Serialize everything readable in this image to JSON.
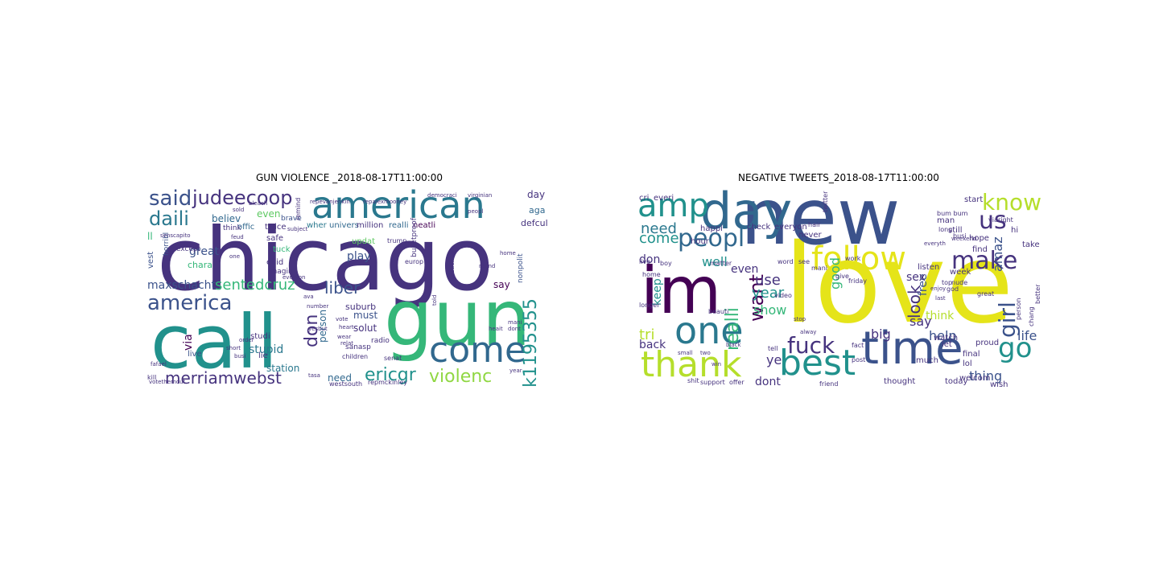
{
  "figure": {
    "panels": [
      {
        "title": "GUN VIOLENCE _2018-08-17T11:00:00",
        "words": [
          {
            "text": "chicago",
            "color": "#46337e"
          },
          {
            "text": "call",
            "color": "#21918c"
          },
          {
            "text": "gun",
            "color": "#35b779"
          },
          {
            "text": "american",
            "color": "#2a788e"
          },
          {
            "text": "come",
            "color": "#31688e"
          },
          {
            "text": "america",
            "color": "#3b528b"
          },
          {
            "text": "said",
            "color": "#3b528b"
          },
          {
            "text": "judeecoop",
            "color": "#46337e"
          },
          {
            "text": "daili",
            "color": "#2a788e"
          },
          {
            "text": "merriamwebst",
            "color": "#46337e"
          },
          {
            "text": "violenc",
            "color": "#90d743"
          },
          {
            "text": "ericgr",
            "color": "#21918c"
          },
          {
            "text": "sentedcruz",
            "color": "#35b779"
          },
          {
            "text": "liber",
            "color": "#3b528b"
          },
          {
            "text": "maxschacht",
            "color": "#3b528b"
          },
          {
            "text": "jk1195355",
            "color": "#21918c"
          },
          {
            "text": "don",
            "color": "#46337e"
          },
          {
            "text": "stupid",
            "color": "#2a788e"
          },
          {
            "text": "play",
            "color": "#3b528b"
          },
          {
            "text": "great",
            "color": "#3b528b"
          },
          {
            "text": "believ",
            "color": "#31688e"
          },
          {
            "text": "even",
            "color": "#5ec962"
          },
          {
            "text": "day",
            "color": "#46337e"
          },
          {
            "text": "say",
            "color": "#440154"
          },
          {
            "text": "must",
            "color": "#3b528b"
          },
          {
            "text": "person",
            "color": "#31688e"
          },
          {
            "text": "need",
            "color": "#31688e"
          },
          {
            "text": "solut",
            "color": "#46337e"
          },
          {
            "text": "suburb",
            "color": "#46337e"
          },
          {
            "text": "station",
            "color": "#2a788e"
          },
          {
            "text": "defcul",
            "color": "#46337e"
          },
          {
            "text": "aga",
            "color": "#31688e"
          },
          {
            "text": "ll",
            "color": "#35b779"
          },
          {
            "text": "via",
            "color": "#440154"
          },
          {
            "text": "live",
            "color": "#3b528b"
          },
          {
            "text": "vest",
            "color": "#3b528b"
          },
          {
            "text": "chara",
            "color": "#35b779"
          },
          {
            "text": "wher",
            "color": "#2a788e"
          },
          {
            "text": "univers",
            "color": "#31688e"
          },
          {
            "text": "million",
            "color": "#46337e"
          },
          {
            "text": "realli",
            "color": "#31688e"
          },
          {
            "text": "neatli",
            "color": "#440154"
          },
          {
            "text": "twice",
            "color": "#46337e"
          },
          {
            "text": "safe",
            "color": "#46337e"
          },
          {
            "text": "tuck",
            "color": "#35b779"
          },
          {
            "text": "evid",
            "color": "#46337e"
          },
          {
            "text": "offic",
            "color": "#31688e"
          },
          {
            "text": "updat",
            "color": "#5ec962"
          },
          {
            "text": "brave",
            "color": "#3b528b"
          },
          {
            "text": "except",
            "color": "#46337e"
          },
          {
            "text": "horribl",
            "color": "#3b528b"
          },
          {
            "text": "think",
            "color": "#46337e"
          },
          {
            "text": "imagin",
            "color": "#46337e"
          },
          {
            "text": "trump",
            "color": "#46337e"
          },
          {
            "text": "europ",
            "color": "#46337e"
          },
          {
            "text": "democraci",
            "color": "#46337e"
          },
          {
            "text": "virginian",
            "color": "#46337e"
          },
          {
            "text": "bulletproof",
            "color": "#46337e"
          },
          {
            "text": "nonpolit",
            "color": "#3b528b"
          },
          {
            "text": "radio",
            "color": "#46337e"
          },
          {
            "text": "sanasp",
            "color": "#46337e"
          },
          {
            "text": "lie",
            "color": "#46337e"
          },
          {
            "text": "studi",
            "color": "#46337e"
          },
          {
            "text": "senat",
            "color": "#46337e"
          },
          {
            "text": "children",
            "color": "#46337e"
          },
          {
            "text": "repmckinley",
            "color": "#46337e"
          },
          {
            "text": "westsouth",
            "color": "#46337e"
          },
          {
            "text": "votethemout",
            "color": "#46337e"
          },
          {
            "text": "kill",
            "color": "#46337e"
          },
          {
            "text": "year",
            "color": "#46337e"
          },
          {
            "text": "dont",
            "color": "#46337e"
          },
          {
            "text": "mani",
            "color": "#46337e"
          },
          {
            "text": "told",
            "color": "#46337e"
          },
          {
            "text": "heart",
            "color": "#46337e"
          },
          {
            "text": "vote",
            "color": "#46337e"
          },
          {
            "text": "number",
            "color": "#46337e"
          },
          {
            "text": "order",
            "color": "#46337e"
          },
          {
            "text": "short",
            "color": "#46337e"
          },
          {
            "text": "busi",
            "color": "#46337e"
          },
          {
            "text": "one",
            "color": "#46337e"
          },
          {
            "text": "home",
            "color": "#46337e"
          },
          {
            "text": "peopl",
            "color": "#46337e"
          },
          {
            "text": "yesbut",
            "color": "#46337e"
          },
          {
            "text": "wear",
            "color": "#46337e"
          },
          {
            "text": "relat",
            "color": "#46337e"
          },
          {
            "text": "repevanjenkin",
            "color": "#46337e"
          },
          {
            "text": "repalexmooney",
            "color": "#46337e"
          },
          {
            "text": "sold",
            "color": "#46337e"
          },
          {
            "text": "feud",
            "color": "#46337e"
          },
          {
            "text": "tasa",
            "color": "#46337e"
          },
          {
            "text": "round",
            "color": "#46337e"
          },
          {
            "text": "heait",
            "color": "#46337e"
          },
          {
            "text": "everyon",
            "color": "#46337e"
          },
          {
            "text": "ava",
            "color": "#46337e"
          },
          {
            "text": "bleach",
            "color": "#46337e"
          },
          {
            "text": "senscapito",
            "color": "#46337e"
          },
          {
            "text": "fafael",
            "color": "#46337e"
          },
          {
            "text": "question",
            "color": "#46337e"
          },
          {
            "text": "subject",
            "color": "#46337e"
          },
          {
            "text": "remind",
            "color": "#46337e"
          }
        ]
      },
      {
        "title": "NEGATIVE TWEETS_2018-08-17T11:00:00",
        "words": [
          {
            "text": "love",
            "color": "#e5e419"
          },
          {
            "text": "new",
            "color": "#3b528b"
          },
          {
            "text": "im",
            "color": "#440154"
          },
          {
            "text": "day",
            "color": "#31688e"
          },
          {
            "text": "time",
            "color": "#3b528b"
          },
          {
            "text": "follow",
            "color": "#e5e419"
          },
          {
            "text": "one",
            "color": "#2a788e"
          },
          {
            "text": "thank",
            "color": "#b5de2b"
          },
          {
            "text": "best",
            "color": "#21918c"
          },
          {
            "text": "amp",
            "color": "#21918c"
          },
          {
            "text": "peopl",
            "color": "#31688e"
          },
          {
            "text": "make",
            "color": "#46337e"
          },
          {
            "text": "know",
            "color": "#b5de2b"
          },
          {
            "text": "us",
            "color": "#46337e"
          },
          {
            "text": "go",
            "color": "#21918c"
          },
          {
            "text": "girl",
            "color": "#3b528b"
          },
          {
            "text": "fuck",
            "color": "#46337e"
          },
          {
            "text": "want",
            "color": "#440154"
          },
          {
            "text": "realli",
            "color": "#35b779"
          },
          {
            "text": "need",
            "color": "#2a788e"
          },
          {
            "text": "come",
            "color": "#21918c"
          },
          {
            "text": "well",
            "color": "#21918c"
          },
          {
            "text": "use",
            "color": "#46337e"
          },
          {
            "text": "year",
            "color": "#21918c"
          },
          {
            "text": "show",
            "color": "#35b779"
          },
          {
            "text": "look",
            "color": "#46337e"
          },
          {
            "text": "free",
            "color": "#3b528b"
          },
          {
            "text": "good",
            "color": "#35b779"
          },
          {
            "text": "amaz",
            "color": "#3b528b"
          },
          {
            "text": "thing",
            "color": "#3b528b"
          },
          {
            "text": "life",
            "color": "#3b528b"
          },
          {
            "text": "help",
            "color": "#3b528b"
          },
          {
            "text": "say",
            "color": "#46337e"
          },
          {
            "text": "big",
            "color": "#46337e"
          },
          {
            "text": "sex",
            "color": "#46337e"
          },
          {
            "text": "think",
            "color": "#b5de2b"
          },
          {
            "text": "even",
            "color": "#46337e"
          },
          {
            "text": "dont",
            "color": "#46337e"
          },
          {
            "text": "tri",
            "color": "#b5de2b"
          },
          {
            "text": "back",
            "color": "#46337e"
          },
          {
            "text": "keep",
            "color": "#21918c"
          },
          {
            "text": "don",
            "color": "#46337e"
          },
          {
            "text": "ye",
            "color": "#46337e"
          },
          {
            "text": "cri",
            "color": "#46337e"
          },
          {
            "text": "everi",
            "color": "#46337e"
          },
          {
            "text": "happi",
            "color": "#46337e"
          },
          {
            "text": "check",
            "color": "#46337e"
          },
          {
            "text": "everyon",
            "color": "#46337e"
          },
          {
            "text": "start",
            "color": "#46337e"
          },
          {
            "text": "lol",
            "color": "#46337e"
          },
          {
            "text": "final",
            "color": "#46337e"
          },
          {
            "text": "welcom",
            "color": "#46337e"
          },
          {
            "text": "today",
            "color": "#46337e"
          },
          {
            "text": "thought",
            "color": "#46337e"
          },
          {
            "text": "friend",
            "color": "#46337e"
          },
          {
            "text": "much",
            "color": "#46337e"
          },
          {
            "text": "let",
            "color": "#46337e"
          },
          {
            "text": "listen",
            "color": "#46337e"
          },
          {
            "text": "hope",
            "color": "#46337e"
          },
          {
            "text": "find",
            "color": "#46337e"
          },
          {
            "text": "take",
            "color": "#46337e"
          },
          {
            "text": "wish",
            "color": "#46337e"
          },
          {
            "text": "watch",
            "color": "#46337e"
          },
          {
            "text": "proud",
            "color": "#46337e"
          },
          {
            "text": "week",
            "color": "#46337e"
          },
          {
            "text": "hour",
            "color": "#46337e"
          },
          {
            "text": "never",
            "color": "#46337e"
          },
          {
            "text": "still",
            "color": "#46337e"
          },
          {
            "text": "man",
            "color": "#46337e"
          },
          {
            "text": "hi",
            "color": "#46337e"
          },
          {
            "text": "live",
            "color": "#46337e"
          },
          {
            "text": "boy",
            "color": "#46337e"
          },
          {
            "text": "home",
            "color": "#46337e"
          },
          {
            "text": "longer",
            "color": "#46337e"
          },
          {
            "text": "beauti",
            "color": "#46337e"
          },
          {
            "text": "small",
            "color": "#46337e"
          },
          {
            "text": "two",
            "color": "#46337e"
          },
          {
            "text": "win",
            "color": "#46337e"
          },
          {
            "text": "black",
            "color": "#46337e"
          },
          {
            "text": "shit",
            "color": "#46337e"
          },
          {
            "text": "support",
            "color": "#46337e"
          },
          {
            "text": "offer",
            "color": "#46337e"
          },
          {
            "text": "video",
            "color": "#46337e"
          },
          {
            "text": "word",
            "color": "#46337e"
          },
          {
            "text": "see",
            "color": "#46337e"
          },
          {
            "text": "tell",
            "color": "#46337e"
          },
          {
            "text": "fact",
            "color": "#46337e"
          },
          {
            "text": "post",
            "color": "#46337e"
          },
          {
            "text": "person",
            "color": "#46337e"
          },
          {
            "text": "chang",
            "color": "#46337e"
          },
          {
            "text": "better",
            "color": "#46337e"
          },
          {
            "text": "hair",
            "color": "#46337e"
          },
          {
            "text": "twitter",
            "color": "#46337e"
          },
          {
            "text": "busi",
            "color": "#46337e"
          },
          {
            "text": "mani",
            "color": "#46337e"
          },
          {
            "text": "give",
            "color": "#46337e"
          },
          {
            "text": "matter",
            "color": "#46337e"
          },
          {
            "text": "enjoy",
            "color": "#46337e"
          },
          {
            "text": "nude",
            "color": "#46337e"
          },
          {
            "text": "top",
            "color": "#46337e"
          },
          {
            "text": "long",
            "color": "#46337e"
          },
          {
            "text": "god",
            "color": "#46337e"
          },
          {
            "text": "great",
            "color": "#46337e"
          },
          {
            "text": "work",
            "color": "#46337e"
          },
          {
            "text": "alway",
            "color": "#46337e"
          },
          {
            "text": "stop",
            "color": "#46337e"
          },
          {
            "text": "friday",
            "color": "#46337e"
          },
          {
            "text": "last",
            "color": "#46337e"
          },
          {
            "text": "weekend",
            "color": "#46337e"
          },
          {
            "text": "everyth",
            "color": "#46337e"
          },
          {
            "text": "bum bum",
            "color": "#46337e"
          },
          {
            "text": "via",
            "color": "#46337e"
          },
          {
            "text": "right",
            "color": "#46337e"
          }
        ]
      }
    ]
  }
}
